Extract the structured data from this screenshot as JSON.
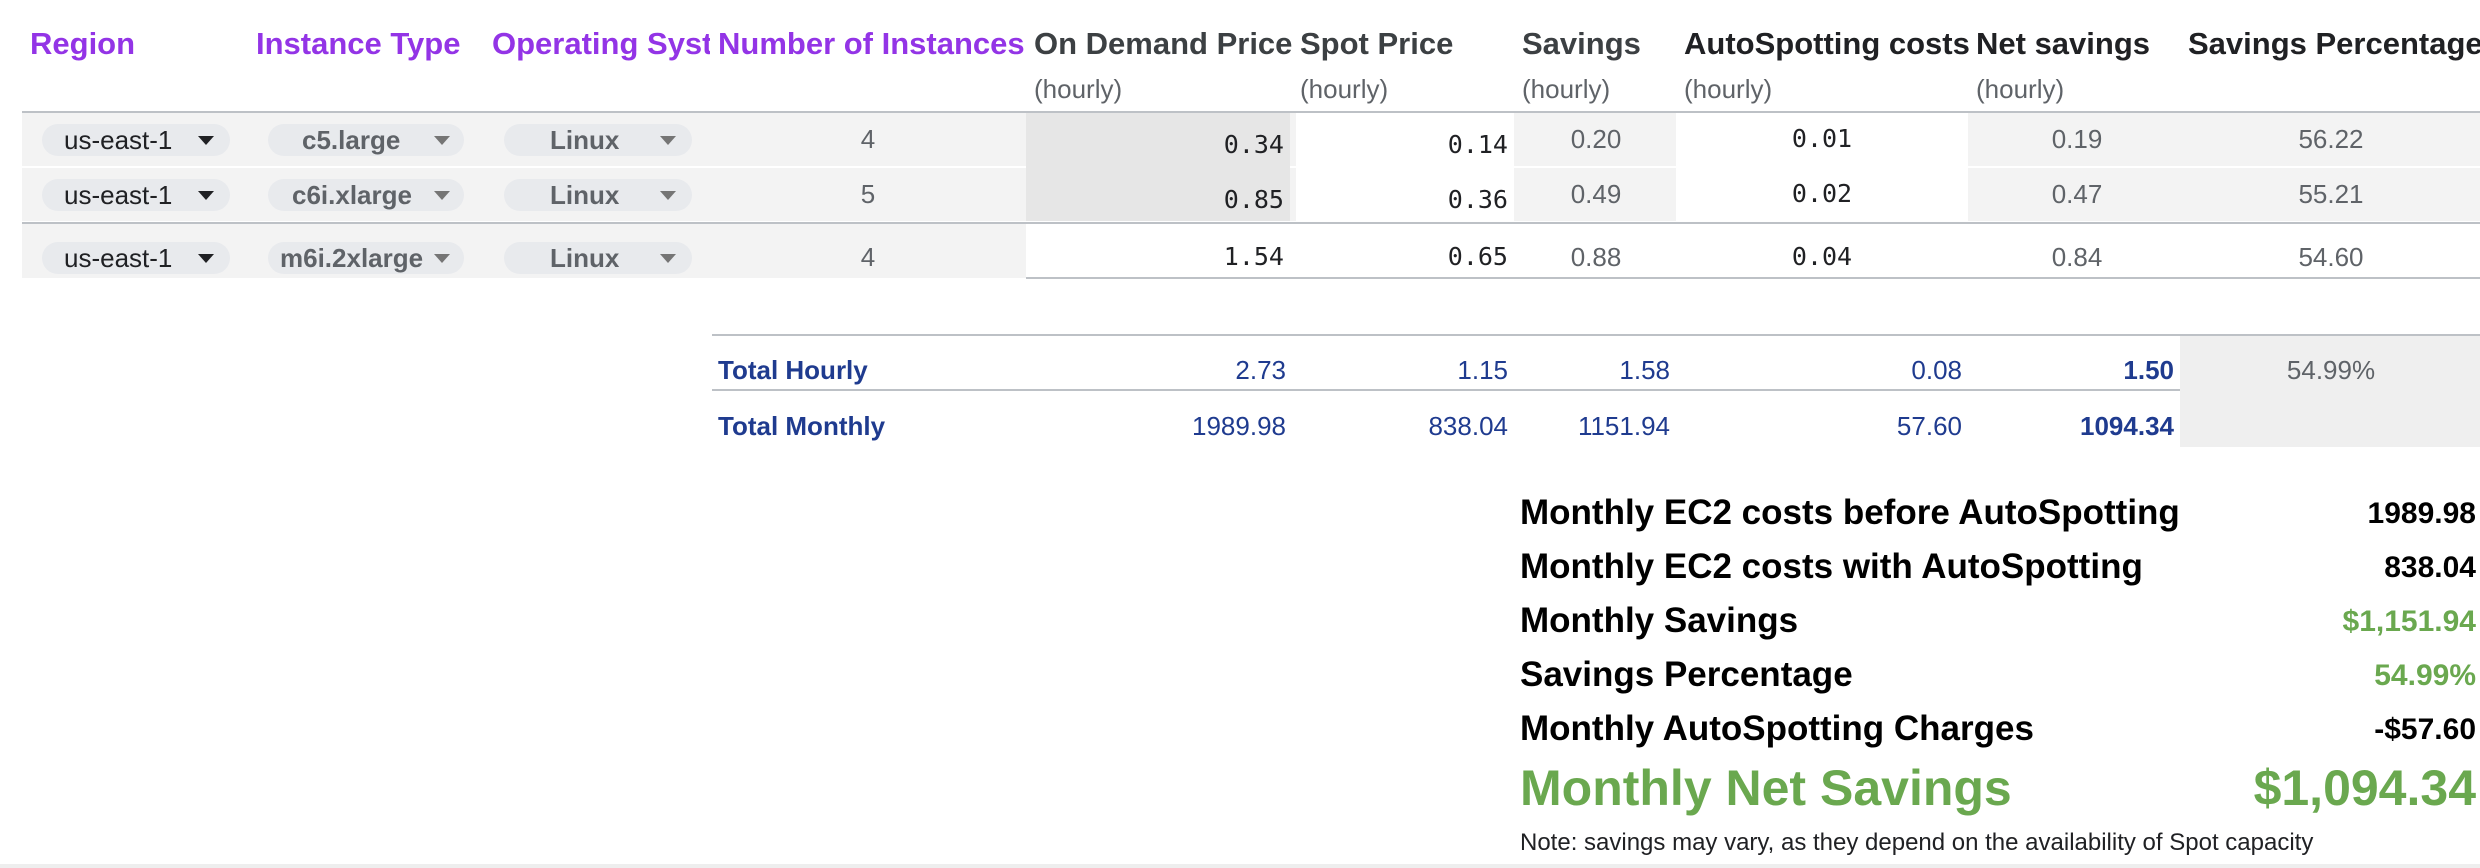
{
  "headers": {
    "region": "Region",
    "instance_type": "Instance Type",
    "operating_system": "Operating System",
    "num_instances": "Number of Instances",
    "on_demand": "On Demand Price",
    "spot": "Spot Price",
    "savings": "Savings",
    "autospotting": "AutoSpotting costs",
    "net_savings": "Net savings",
    "savings_pct": "Savings Percentage",
    "hourly": "(hourly)"
  },
  "rows": [
    {
      "region": "us-east-1",
      "instance_type": "c5.large",
      "os": "Linux",
      "count": "4",
      "on_demand": "0.34",
      "spot": "0.14",
      "savings": "0.20",
      "autospotting": "0.01",
      "net": "0.19",
      "pct": "56.22"
    },
    {
      "region": "us-east-1",
      "instance_type": "c6i.xlarge",
      "os": "Linux",
      "count": "5",
      "on_demand": "0.85",
      "spot": "0.36",
      "savings": "0.49",
      "autospotting": "0.02",
      "net": "0.47",
      "pct": "55.21"
    },
    {
      "region": "us-east-1",
      "instance_type": "m6i.2xlarge",
      "os": "Linux",
      "count": "4",
      "on_demand": "1.54",
      "spot": "0.65",
      "savings": "0.88",
      "autospotting": "0.04",
      "net": "0.84",
      "pct": "54.60"
    }
  ],
  "totals": {
    "hourly": {
      "label": "Total Hourly",
      "on_demand": "2.73",
      "spot": "1.15",
      "savings": "1.58",
      "autospotting": "0.08",
      "net": "1.50",
      "pct": "54.99%"
    },
    "monthly": {
      "label": "Total Monthly",
      "on_demand": "1989.98",
      "spot": "838.04",
      "savings": "1151.94",
      "autospotting": "57.60",
      "net": "1094.34"
    }
  },
  "summary": {
    "before_label": "Monthly EC2 costs before AutoSpotting",
    "before_value": "1989.98",
    "with_label": "Monthly EC2 costs with AutoSpotting",
    "with_value": "838.04",
    "savings_label": "Monthly Savings",
    "savings_value": "$1,151.94",
    "pct_label": "Savings Percentage",
    "pct_value": "54.99%",
    "charges_label": "Monthly AutoSpotting Charges",
    "charges_value": "-$57.60",
    "net_label": "Monthly Net Savings",
    "net_value": "$1,094.34",
    "note": "Note: savings may vary, as they depend on the availability of Spot capacity"
  },
  "colors": {
    "header_purple": "#9334e6",
    "totals_blue": "#1f3b8f",
    "savings_green": "#6aa84f"
  }
}
